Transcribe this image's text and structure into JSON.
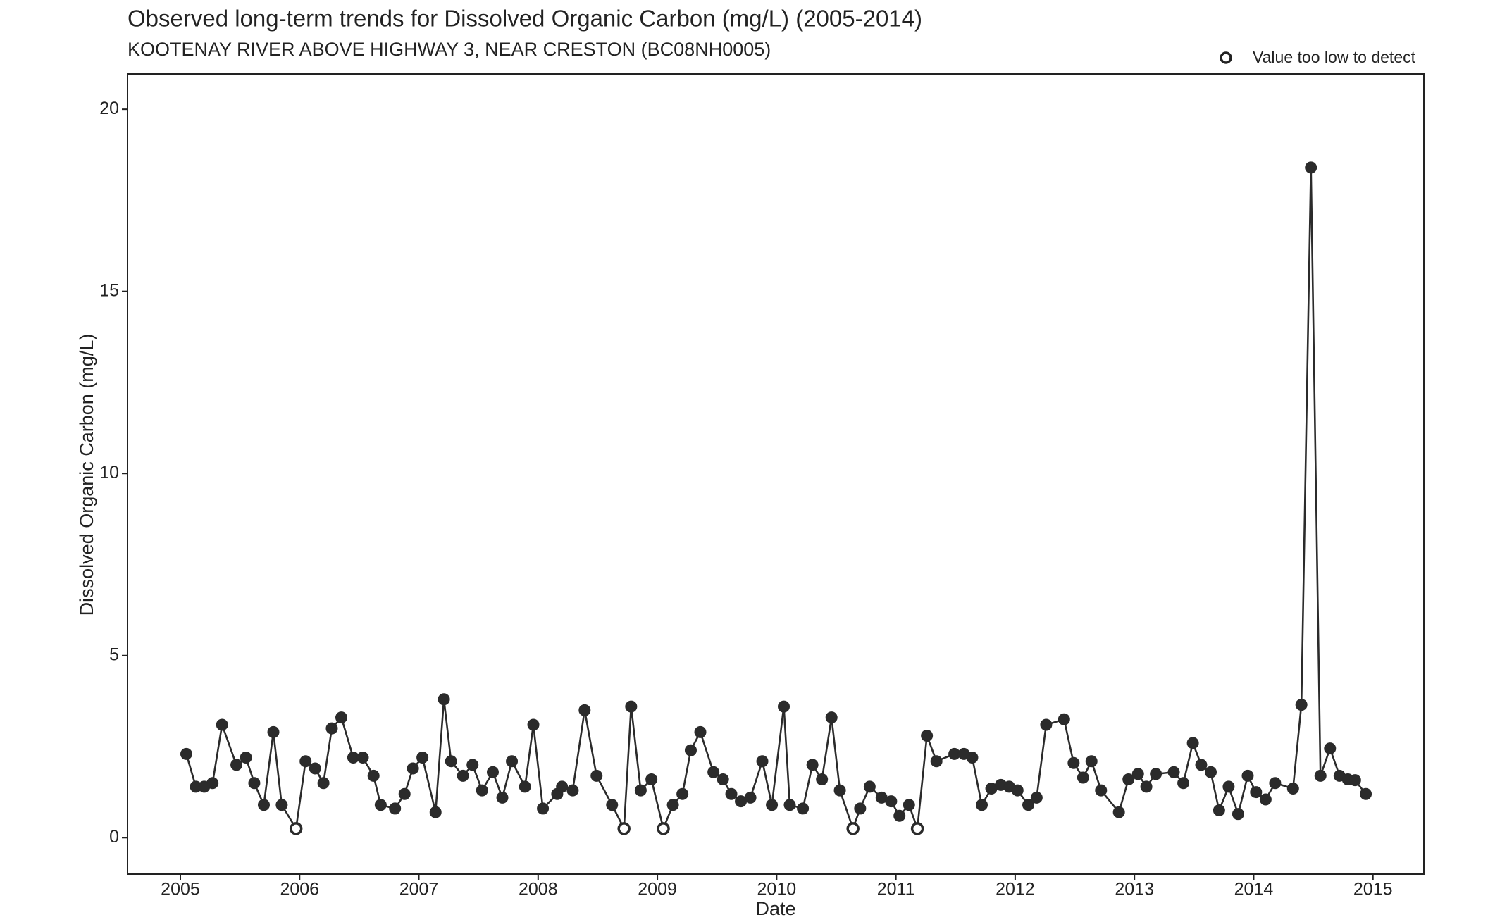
{
  "chart_data": {
    "type": "line",
    "title": "Observed long-term trends for Dissolved Organic Carbon (mg/L) (2005-2014)",
    "subtitle": "KOOTENAY RIVER ABOVE HIGHWAY 3, NEAR CRESTON (BC08NH0005)",
    "x_label": "Date",
    "y_label": "Dissolved Organic Carbon (mg/L)",
    "legend": "Value too low to detect",
    "color": "#2b2b2b",
    "x": [
      2005.05,
      2005.13,
      2005.2,
      2005.27,
      2005.35,
      2005.47,
      2005.55,
      2005.62,
      2005.7,
      2005.78,
      2005.85,
      2005.97,
      2006.05,
      2006.13,
      2006.2,
      2006.27,
      2006.35,
      2006.45,
      2006.53,
      2006.62,
      2006.68,
      2006.8,
      2006.88,
      2006.95,
      2007.03,
      2007.14,
      2007.21,
      2007.27,
      2007.37,
      2007.45,
      2007.53,
      2007.62,
      2007.7,
      2007.78,
      2007.89,
      2007.96,
      2008.04,
      2008.16,
      2008.2,
      2008.29,
      2008.39,
      2008.49,
      2008.62,
      2008.72,
      2008.78,
      2008.86,
      2008.95,
      2009.05,
      2009.13,
      2009.21,
      2009.28,
      2009.36,
      2009.47,
      2009.55,
      2009.62,
      2009.7,
      2009.78,
      2009.88,
      2009.96,
      2010.06,
      2010.11,
      2010.22,
      2010.3,
      2010.38,
      2010.46,
      2010.53,
      2010.64,
      2010.7,
      2010.78,
      2010.88,
      2010.96,
      2011.03,
      2011.11,
      2011.18,
      2011.26,
      2011.34,
      2011.49,
      2011.57,
      2011.64,
      2011.72,
      2011.8,
      2011.88,
      2011.95,
      2012.02,
      2012.11,
      2012.18,
      2012.26,
      2012.41,
      2012.49,
      2012.57,
      2012.64,
      2012.72,
      2012.87,
      2012.95,
      2013.03,
      2013.1,
      2013.18,
      2013.33,
      2013.41,
      2013.49,
      2013.56,
      2013.64,
      2013.71,
      2013.79,
      2013.87,
      2013.95,
      2014.02,
      2014.1,
      2014.18,
      2014.33,
      2014.4,
      2014.48,
      2014.56,
      2014.64,
      2014.72,
      2014.79,
      2014.85,
      2014.94
    ],
    "values": [
      2.3,
      1.4,
      1.4,
      1.5,
      3.1,
      2.0,
      2.2,
      1.5,
      0.9,
      2.9,
      0.9,
      0.25,
      2.1,
      1.9,
      1.5,
      3.0,
      3.3,
      2.2,
      2.2,
      1.7,
      0.9,
      0.8,
      1.2,
      1.9,
      2.2,
      0.7,
      3.8,
      2.1,
      1.7,
      2.0,
      1.3,
      1.8,
      1.1,
      2.1,
      1.4,
      3.1,
      0.8,
      1.2,
      1.4,
      1.3,
      3.5,
      1.7,
      0.9,
      0.25,
      3.6,
      1.3,
      1.6,
      0.25,
      0.9,
      1.2,
      2.4,
      2.9,
      1.8,
      1.6,
      1.2,
      1.0,
      1.1,
      2.1,
      0.9,
      3.6,
      0.9,
      0.8,
      2.0,
      1.6,
      3.3,
      1.3,
      0.25,
      0.8,
      1.4,
      1.1,
      1.0,
      0.6,
      0.9,
      0.25,
      2.8,
      2.1,
      2.3,
      2.3,
      2.2,
      0.9,
      1.35,
      1.45,
      1.4,
      1.3,
      0.9,
      1.1,
      3.1,
      3.25,
      2.05,
      1.65,
      2.1,
      1.3,
      0.7,
      1.6,
      1.75,
      1.4,
      1.75,
      1.8,
      1.5,
      2.6,
      2.0,
      1.8,
      0.75,
      1.4,
      0.65,
      1.7,
      1.25,
      1.05,
      1.5,
      1.35,
      3.65,
      18.4,
      1.7,
      2.45,
      1.7,
      1.6,
      1.58,
      1.2
    ],
    "censored_points": [
      11,
      43,
      47,
      66,
      73
    ],
    "xlim": [
      2004.557,
      2015.427
    ],
    "xticks": [
      2005,
      2006,
      2007,
      2008,
      2009,
      2010,
      2011,
      2012,
      2013,
      2014,
      2015
    ],
    "ylim": [
      -1.0,
      20.97
    ],
    "yticks": [
      0,
      5,
      10,
      15,
      20
    ]
  }
}
